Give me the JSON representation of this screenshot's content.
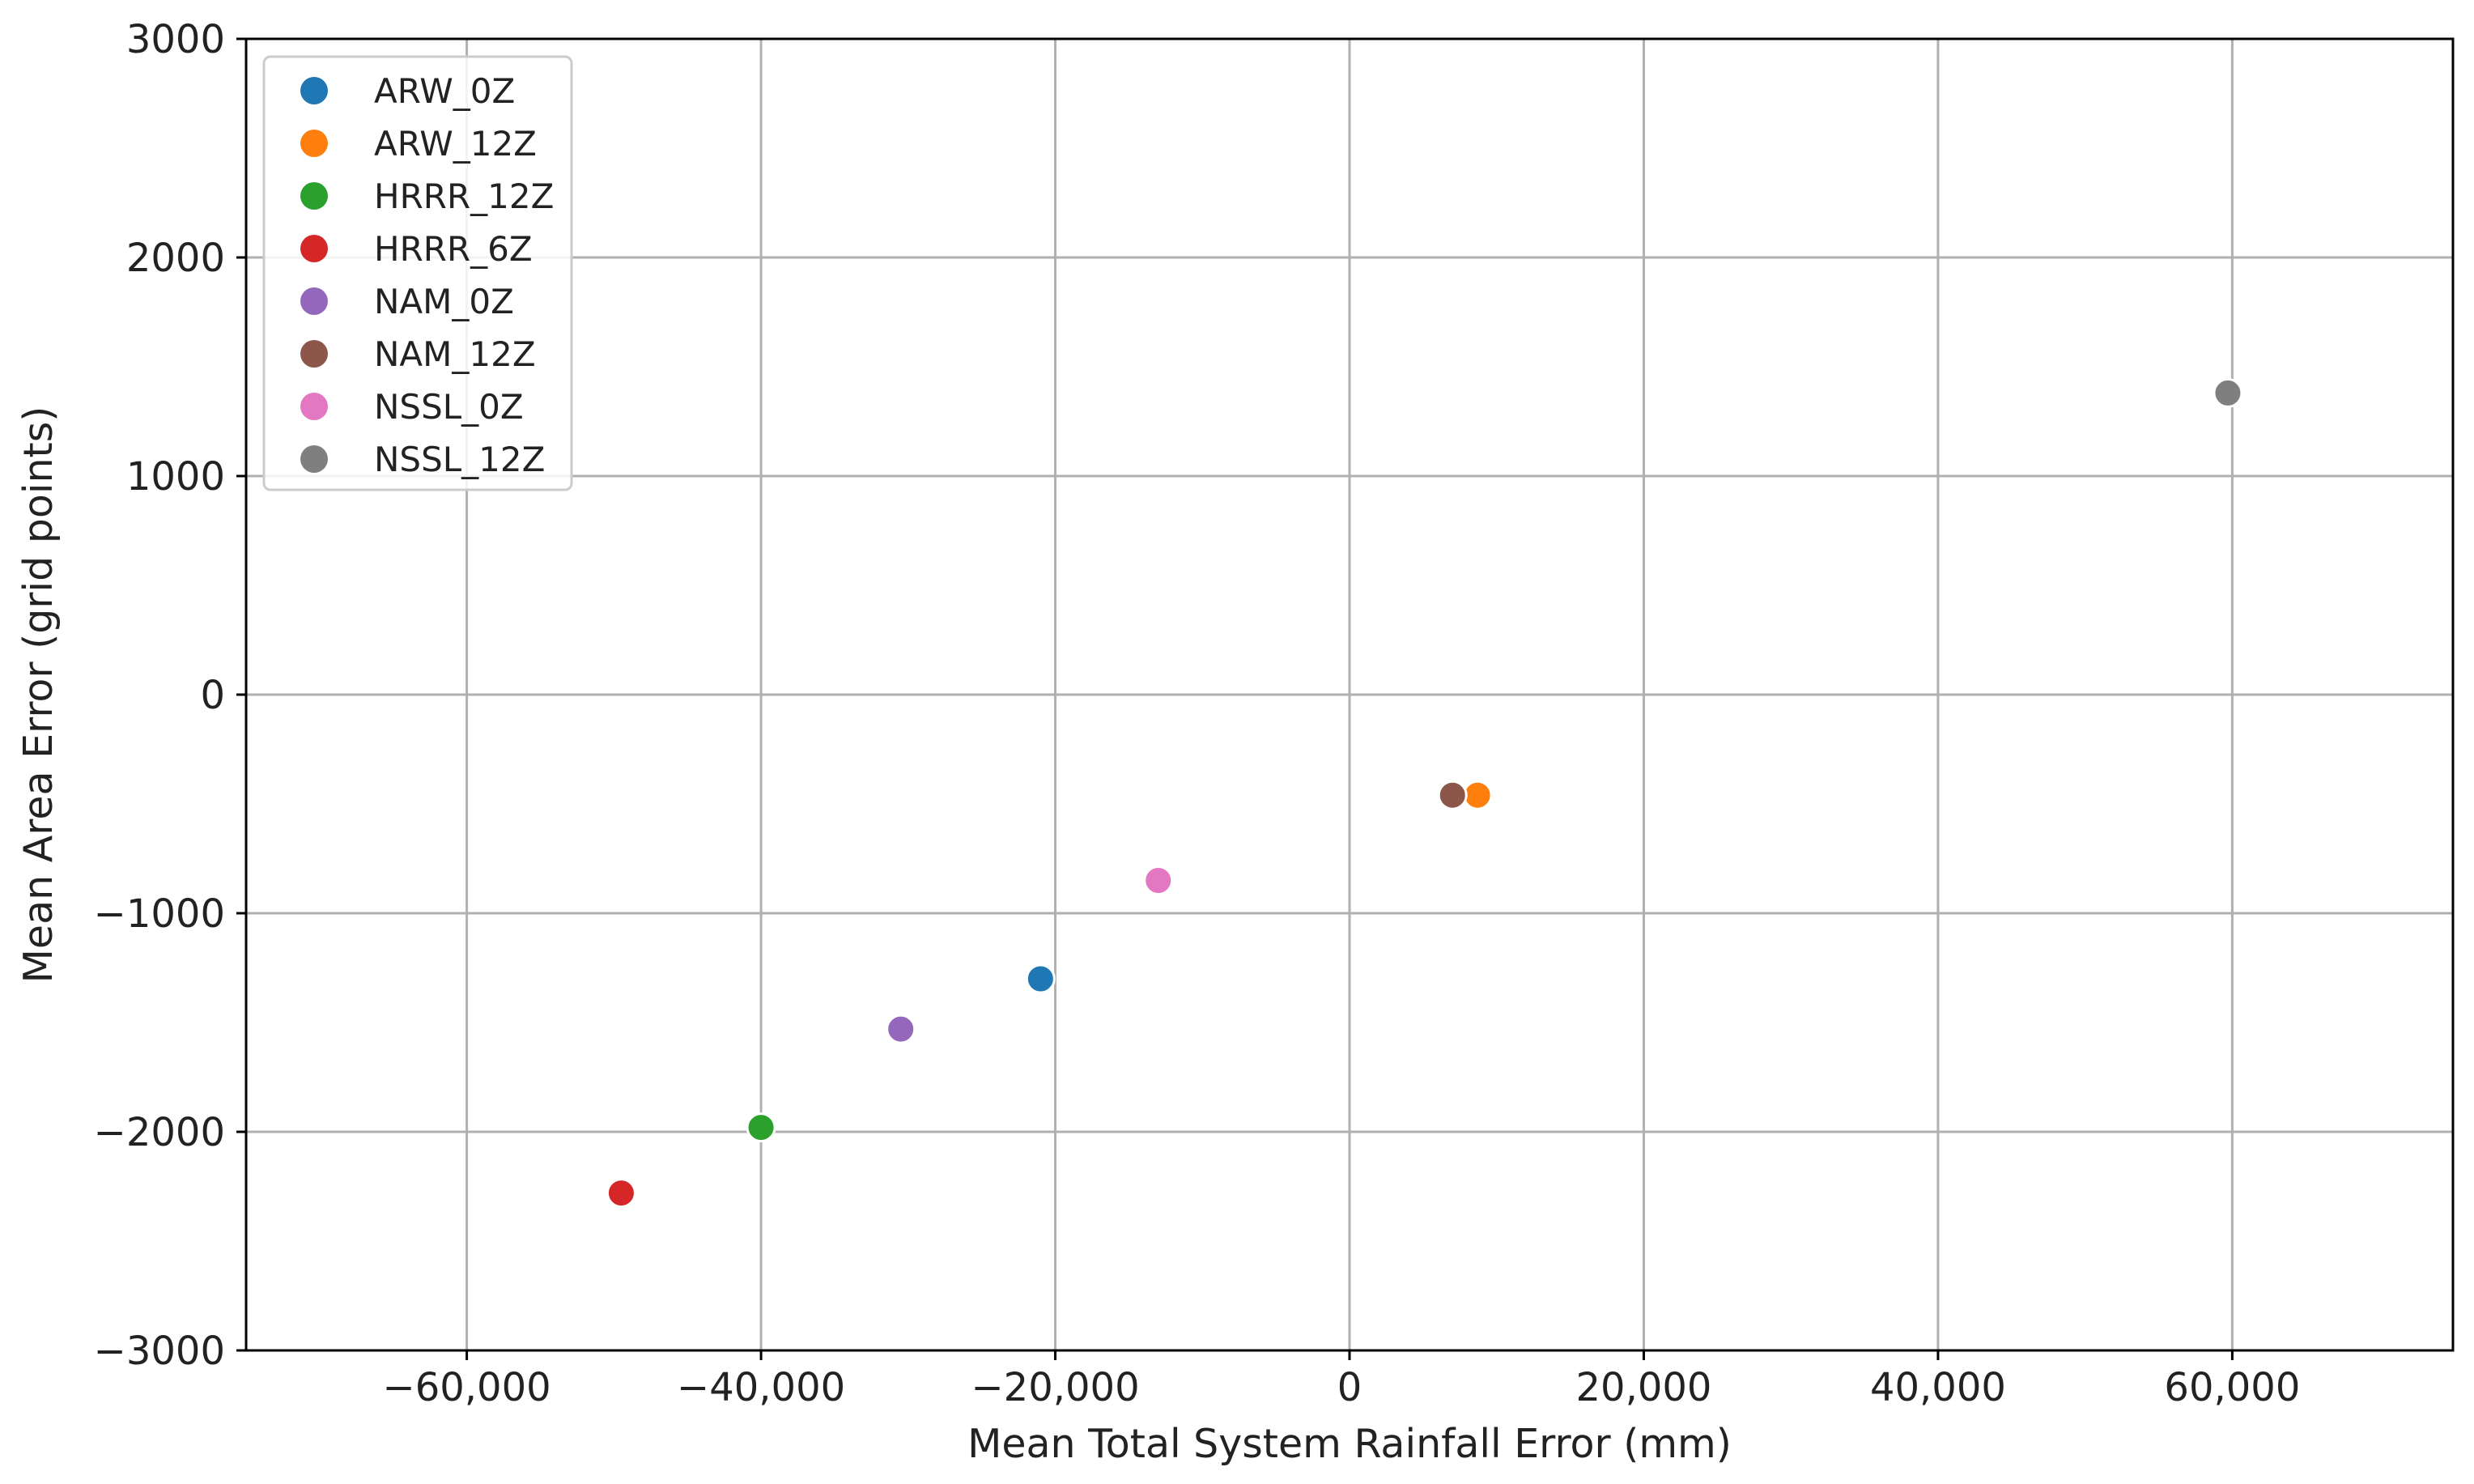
{
  "chart_data": {
    "type": "scatter",
    "title": "",
    "xlabel": "Mean Total System Rainfall Error (mm)",
    "ylabel": "Mean Area Error (grid points)",
    "xlim": [
      -75000,
      75000
    ],
    "ylim": [
      -3000,
      3000
    ],
    "x_ticks": [
      -60000,
      -40000,
      -20000,
      0,
      20000,
      40000,
      60000
    ],
    "x_tick_labels": [
      "−60,000",
      "−40,000",
      "−20,000",
      "0",
      "20,000",
      "40,000",
      "60,000"
    ],
    "y_ticks": [
      -3000,
      -2000,
      -1000,
      0,
      1000,
      2000,
      3000
    ],
    "y_tick_labels": [
      "−3000",
      "−2000",
      "−1000",
      "0",
      "1000",
      "2000",
      "3000"
    ],
    "grid": true,
    "legend_position": "top-left",
    "series": [
      {
        "name": "ARW_0Z",
        "color": "#1f77b4",
        "x": -21000,
        "y": -1300
      },
      {
        "name": "ARW_12Z",
        "color": "#ff7f0e",
        "x": 8700,
        "y": -460
      },
      {
        "name": "HRRR_12Z",
        "color": "#2ca02c",
        "x": -40000,
        "y": -1980
      },
      {
        "name": "HRRR_6Z",
        "color": "#d62728",
        "x": -49500,
        "y": -2280
      },
      {
        "name": "NAM_0Z",
        "color": "#9467bd",
        "x": -30500,
        "y": -1530
      },
      {
        "name": "NAM_12Z",
        "color": "#8c564b",
        "x": 7000,
        "y": -460
      },
      {
        "name": "NSSL_0Z",
        "color": "#e377c2",
        "x": -13000,
        "y": -850
      },
      {
        "name": "NSSL_12Z",
        "color": "#7f7f7f",
        "x": 59700,
        "y": 1380
      }
    ]
  }
}
